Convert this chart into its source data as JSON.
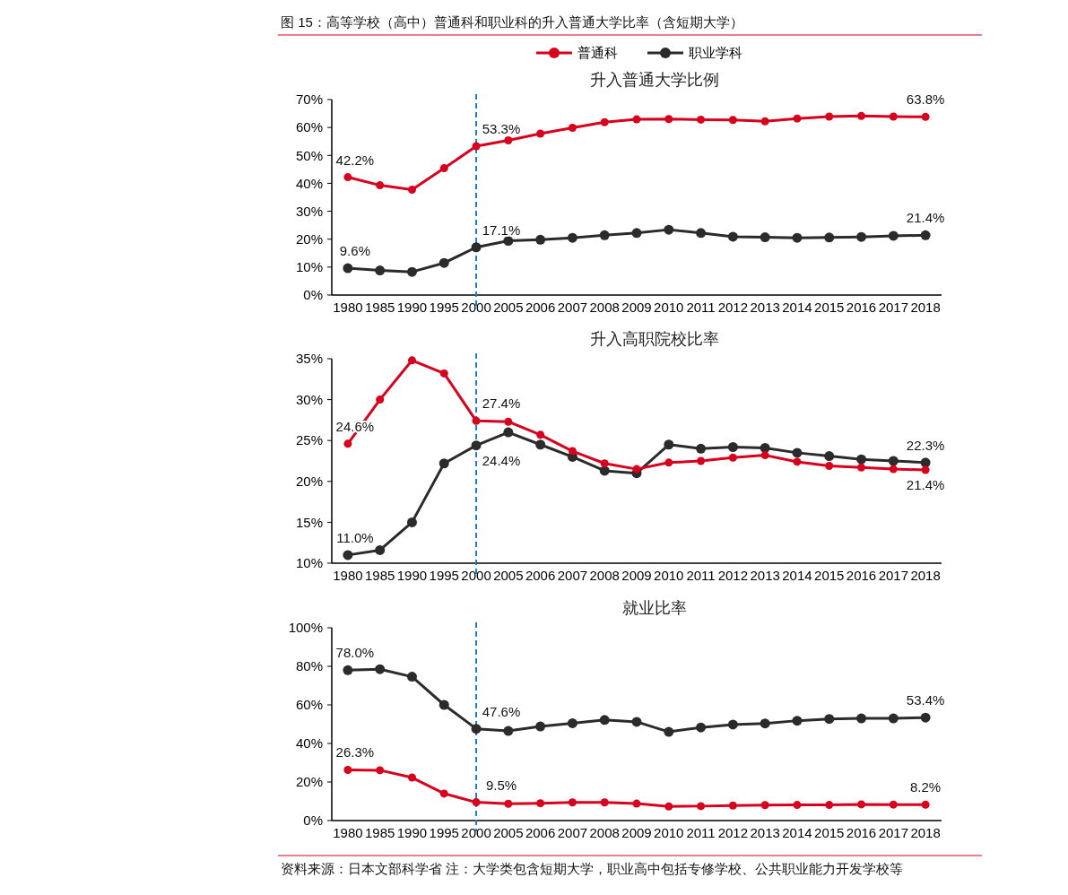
{
  "chart_data": [
    {
      "type": "line",
      "title": "图 15：高等学校（高中）普通科和职业科的升入普通大学比率（含短期大学）",
      "subtitle": "升入普通大学比例",
      "categories": [
        "1980",
        "1985",
        "1990",
        "1995",
        "2000",
        "2005",
        "2006",
        "2007",
        "2008",
        "2009",
        "2010",
        "2011",
        "2012",
        "2013",
        "2014",
        "2015",
        "2016",
        "2017",
        "2018"
      ],
      "ylim": [
        0,
        70
      ],
      "yticks": [
        {
          "value": 0,
          "label": "0%"
        },
        {
          "value": 10,
          "label": "10%"
        },
        {
          "value": 20,
          "label": "20%"
        },
        {
          "value": 30,
          "label": "30%"
        },
        {
          "value": 40,
          "label": "40%"
        },
        {
          "value": 50,
          "label": "50%"
        },
        {
          "value": 60,
          "label": "60%"
        },
        {
          "value": 70,
          "label": "70%"
        }
      ],
      "grid": false,
      "legend": "top",
      "marker": "circle",
      "line_style": "solid",
      "ref_lines": [
        {
          "axis": "x",
          "value": "2000",
          "color": "#1f7bc8",
          "line_style": "dashed"
        }
      ],
      "series": [
        {
          "name": "普通科",
          "color": "#d7001d",
          "values": [
            42.2,
            39.3,
            37.7,
            45.4,
            53.3,
            55.4,
            57.8,
            59.9,
            61.9,
            62.9,
            63.0,
            62.8,
            62.7,
            62.2,
            63.2,
            63.9,
            64.1,
            63.9,
            63.8
          ],
          "value_labels": [
            "42.2%",
            null,
            null,
            null,
            "53.3%",
            null,
            null,
            null,
            null,
            null,
            null,
            null,
            null,
            null,
            null,
            null,
            null,
            null,
            "63.8%"
          ]
        },
        {
          "name": "职业学科",
          "color": "#2b2b2b",
          "values": [
            9.6,
            8.8,
            8.3,
            11.5,
            17.1,
            19.4,
            19.8,
            20.5,
            21.4,
            22.2,
            23.4,
            22.2,
            20.9,
            20.7,
            20.5,
            20.6,
            20.8,
            21.2,
            21.4
          ],
          "value_labels": [
            "9.6%",
            null,
            null,
            null,
            "17.1%",
            null,
            null,
            null,
            null,
            null,
            null,
            null,
            null,
            null,
            null,
            null,
            null,
            null,
            "21.4%"
          ]
        }
      ]
    },
    {
      "type": "line",
      "title": "升入高职院校比率",
      "categories": [
        "1980",
        "1985",
        "1990",
        "1995",
        "2000",
        "2005",
        "2006",
        "2007",
        "2008",
        "2009",
        "2010",
        "2011",
        "2012",
        "2013",
        "2014",
        "2015",
        "2016",
        "2017",
        "2018"
      ],
      "ylim": [
        10,
        35
      ],
      "yticks": [
        {
          "value": 10,
          "label": "10%"
        },
        {
          "value": 15,
          "label": "15%"
        },
        {
          "value": 20,
          "label": "20%"
        },
        {
          "value": 25,
          "label": "25%"
        },
        {
          "value": 30,
          "label": "30%"
        },
        {
          "value": 35,
          "label": "35%"
        }
      ],
      "grid": false,
      "marker": "circle",
      "line_style": "solid",
      "ref_lines": [
        {
          "axis": "x",
          "value": "2000",
          "color": "#1f7bc8",
          "line_style": "dashed"
        }
      ],
      "series": [
        {
          "color": "#d7001d",
          "values": [
            24.6,
            30.0,
            34.8,
            33.2,
            27.4,
            27.3,
            25.7,
            23.7,
            22.2,
            21.5,
            22.3,
            22.5,
            22.9,
            23.2,
            22.4,
            21.9,
            21.7,
            21.5,
            21.4
          ],
          "value_labels": [
            "24.6%",
            null,
            null,
            null,
            "27.4%",
            null,
            null,
            null,
            null,
            null,
            null,
            null,
            null,
            null,
            null,
            null,
            null,
            null,
            "21.4%"
          ]
        },
        {
          "color": "#2b2b2b",
          "values": [
            11.0,
            11.6,
            15.0,
            22.2,
            24.4,
            26.0,
            24.5,
            23.0,
            21.3,
            21.0,
            24.5,
            24.0,
            24.2,
            24.1,
            23.5,
            23.1,
            22.7,
            22.5,
            22.3
          ],
          "value_labels": [
            "11.0%",
            null,
            null,
            null,
            "24.4%",
            null,
            null,
            null,
            null,
            null,
            null,
            null,
            null,
            null,
            null,
            null,
            null,
            null,
            "22.3%"
          ]
        }
      ]
    },
    {
      "type": "line",
      "title": "就业比率",
      "categories": [
        "1980",
        "1985",
        "1990",
        "1995",
        "2000",
        "2005",
        "2006",
        "2007",
        "2008",
        "2009",
        "2010",
        "2011",
        "2012",
        "2013",
        "2014",
        "2015",
        "2016",
        "2017",
        "2018"
      ],
      "ylim": [
        0,
        100
      ],
      "yticks": [
        {
          "value": 0,
          "label": "0%"
        },
        {
          "value": 20,
          "label": "20%"
        },
        {
          "value": 40,
          "label": "40%"
        },
        {
          "value": 60,
          "label": "60%"
        },
        {
          "value": 80,
          "label": "80%"
        },
        {
          "value": 100,
          "label": "100%"
        }
      ],
      "grid": false,
      "marker": "circle",
      "line_style": "solid",
      "ref_lines": [
        {
          "axis": "x",
          "value": "2000",
          "color": "#1f7bc8",
          "line_style": "dashed"
        }
      ],
      "annotations": [
        "资料来源：日本文部科学省 注：大学类包含短期大学，职业高中包括专修学校、公共职业能力开发学校等"
      ],
      "series": [
        {
          "color": "#d7001d",
          "values": [
            26.3,
            26.1,
            22.3,
            14.0,
            9.5,
            8.7,
            9.0,
            9.4,
            9.4,
            8.8,
            7.3,
            7.5,
            7.8,
            8.0,
            8.1,
            8.1,
            8.4,
            8.3,
            8.2
          ],
          "value_labels": [
            "26.3%",
            null,
            null,
            null,
            "9.5%",
            null,
            null,
            null,
            null,
            null,
            null,
            null,
            null,
            null,
            null,
            null,
            null,
            null,
            "8.2%"
          ]
        },
        {
          "color": "#2b2b2b",
          "values": [
            78.0,
            78.5,
            74.6,
            60.0,
            47.6,
            46.5,
            48.8,
            50.5,
            52.2,
            51.2,
            46.0,
            48.3,
            49.8,
            50.4,
            51.8,
            52.7,
            53.0,
            53.0,
            53.4
          ],
          "value_labels": [
            "78.0%",
            null,
            null,
            null,
            "47.6%",
            null,
            null,
            null,
            null,
            null,
            null,
            null,
            null,
            null,
            null,
            null,
            null,
            null,
            "53.4%"
          ]
        }
      ]
    }
  ]
}
